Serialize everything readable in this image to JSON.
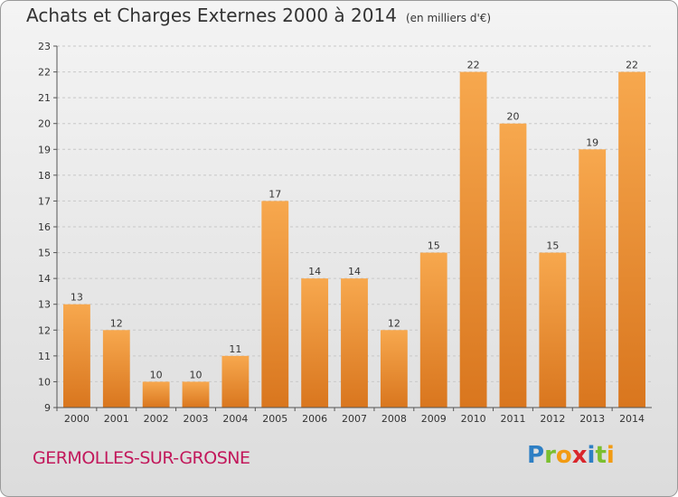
{
  "header": {
    "title": "Achats et Charges Externes 2000 à 2014",
    "unit": "(en milliers d'€)"
  },
  "footer": {
    "commune": "GERMOLLES-SUR-GROSNE",
    "logo_text": "Proxiti"
  },
  "colors": {
    "bar_top": "#f7a84e",
    "bar_bottom": "#d9761e",
    "commune": "#c2185b"
  },
  "chart_data": {
    "type": "bar",
    "title": "Achats et Charges Externes 2000 à 2014",
    "subtitle": "(en milliers d'€)",
    "categories": [
      "2000",
      "2001",
      "2002",
      "2003",
      "2004",
      "2005",
      "2006",
      "2007",
      "2008",
      "2009",
      "2010",
      "2011",
      "2012",
      "2013",
      "2014"
    ],
    "values": [
      13,
      12,
      10,
      10,
      11,
      17,
      14,
      14,
      12,
      15,
      22,
      20,
      15,
      19,
      22
    ],
    "ylim": [
      9,
      23
    ],
    "yticks": [
      9,
      10,
      11,
      12,
      13,
      14,
      15,
      16,
      17,
      18,
      19,
      20,
      21,
      22,
      23
    ],
    "grid": "horizontal-dashed",
    "xlabel": "",
    "ylabel": ""
  }
}
